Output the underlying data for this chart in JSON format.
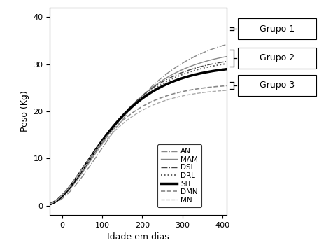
{
  "xlabel": "Idade em dias",
  "ylabel": "Peso (Kg)",
  "xlim": [
    -30,
    410
  ],
  "ylim": [
    -2,
    42
  ],
  "xticks": [
    0,
    100,
    200,
    300,
    400
  ],
  "yticks": [
    0,
    10,
    20,
    30,
    40
  ],
  "curves": [
    {
      "name": "AN",
      "Linf": 37.5,
      "k": 0.0075,
      "t0": -55,
      "style": "dashdot",
      "lw": 1.0,
      "color": "#888888"
    },
    {
      "name": "MAM",
      "Linf": 33.5,
      "k": 0.0085,
      "t0": -55,
      "style": "solid",
      "lw": 1.0,
      "color": "#888888"
    },
    {
      "name": "DSI",
      "Linf": 32.0,
      "k": 0.009,
      "t0": -55,
      "style": "dashdot",
      "lw": 1.0,
      "color": "#444444"
    },
    {
      "name": "DRL",
      "Linf": 31.5,
      "k": 0.009,
      "t0": -55,
      "style": "dotted",
      "lw": 1.3,
      "color": "#555555"
    },
    {
      "name": "SIT",
      "Linf": 30.0,
      "k": 0.0095,
      "t0": -55,
      "style": "solid",
      "lw": 2.5,
      "color": "#000000"
    },
    {
      "name": "DMN",
      "Linf": 26.0,
      "k": 0.0105,
      "t0": -55,
      "style": "dashed",
      "lw": 1.2,
      "color": "#888888"
    },
    {
      "name": "MN",
      "Linf": 25.0,
      "k": 0.0105,
      "t0": -55,
      "style": "dashed",
      "lw": 1.0,
      "color": "#aaaaaa"
    }
  ],
  "groups": [
    {
      "name": "Grupo 1",
      "y_top": 37.8,
      "y_bot": 37.2,
      "y_mid": 37.5
    },
    {
      "name": "Grupo 2",
      "y_top": 33.0,
      "y_bot": 29.5,
      "y_mid": 31.3
    },
    {
      "name": "Grupo 3",
      "y_top": 26.2,
      "y_bot": 24.8,
      "y_mid": 25.5
    }
  ],
  "background": "#ffffff"
}
